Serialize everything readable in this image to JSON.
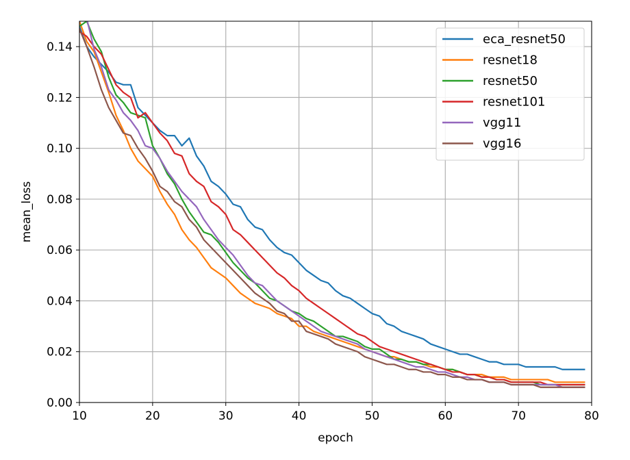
{
  "chart_data": {
    "type": "line",
    "xlabel": "epoch",
    "ylabel": "mean_loss",
    "xlim": [
      10,
      80
    ],
    "ylim": [
      0,
      0.15
    ],
    "x_ticks": [
      "10",
      "20",
      "30",
      "40",
      "50",
      "60",
      "70",
      "80"
    ],
    "x_tick_values": [
      10,
      20,
      30,
      40,
      50,
      60,
      70,
      80
    ],
    "y_ticks": [
      "0.00",
      "0.02",
      "0.04",
      "0.06",
      "0.08",
      "0.10",
      "0.12",
      "0.14"
    ],
    "y_tick_values": [
      0,
      0.02,
      0.04,
      0.06,
      0.08,
      0.1,
      0.12,
      0.14
    ],
    "grid": true,
    "legend_position": "top-right",
    "x_start": 10,
    "series": [
      {
        "name": "eca_resnet50",
        "color": "#1f77b4",
        "values": [
          0.148,
          0.14,
          0.136,
          0.133,
          0.13,
          0.126,
          0.125,
          0.125,
          0.116,
          0.113,
          0.11,
          0.107,
          0.105,
          0.105,
          0.101,
          0.104,
          0.097,
          0.093,
          0.087,
          0.085,
          0.082,
          0.078,
          0.077,
          0.072,
          0.069,
          0.068,
          0.064,
          0.061,
          0.059,
          0.058,
          0.055,
          0.052,
          0.05,
          0.048,
          0.047,
          0.044,
          0.042,
          0.041,
          0.039,
          0.037,
          0.035,
          0.034,
          0.031,
          0.03,
          0.028,
          0.027,
          0.026,
          0.025,
          0.023,
          0.022,
          0.021,
          0.02,
          0.019,
          0.019,
          0.018,
          0.017,
          0.016,
          0.016,
          0.015,
          0.015,
          0.015,
          0.014,
          0.014,
          0.014,
          0.014,
          0.014,
          0.013,
          0.013,
          0.013,
          0.013
        ]
      },
      {
        "name": "resnet18",
        "color": "#ff7f0e",
        "values": [
          0.15,
          0.142,
          0.138,
          0.13,
          0.122,
          0.113,
          0.107,
          0.1,
          0.095,
          0.092,
          0.089,
          0.083,
          0.078,
          0.074,
          0.068,
          0.064,
          0.061,
          0.057,
          0.053,
          0.051,
          0.049,
          0.046,
          0.043,
          0.041,
          0.039,
          0.038,
          0.037,
          0.035,
          0.034,
          0.033,
          0.03,
          0.03,
          0.028,
          0.027,
          0.026,
          0.025,
          0.024,
          0.023,
          0.022,
          0.021,
          0.02,
          0.019,
          0.018,
          0.018,
          0.017,
          0.016,
          0.016,
          0.015,
          0.014,
          0.014,
          0.013,
          0.013,
          0.012,
          0.011,
          0.011,
          0.011,
          0.01,
          0.01,
          0.01,
          0.009,
          0.009,
          0.009,
          0.009,
          0.009,
          0.009,
          0.008,
          0.008,
          0.008,
          0.008,
          0.008
        ]
      },
      {
        "name": "resnet50",
        "color": "#2ca02c",
        "values": [
          0.148,
          0.15,
          0.143,
          0.138,
          0.128,
          0.121,
          0.118,
          0.114,
          0.113,
          0.112,
          0.101,
          0.096,
          0.09,
          0.086,
          0.08,
          0.075,
          0.071,
          0.067,
          0.066,
          0.063,
          0.059,
          0.055,
          0.052,
          0.049,
          0.047,
          0.044,
          0.041,
          0.04,
          0.038,
          0.036,
          0.035,
          0.033,
          0.032,
          0.03,
          0.028,
          0.026,
          0.026,
          0.025,
          0.024,
          0.022,
          0.021,
          0.021,
          0.019,
          0.017,
          0.017,
          0.016,
          0.016,
          0.015,
          0.015,
          0.014,
          0.013,
          0.013,
          0.012,
          0.011,
          0.011,
          0.01,
          0.01,
          0.009,
          0.009,
          0.008,
          0.008,
          0.008,
          0.008,
          0.007,
          0.007,
          0.007,
          0.007,
          0.007,
          0.007,
          0.007
        ]
      },
      {
        "name": "resnet101",
        "color": "#d62728",
        "values": [
          0.146,
          0.144,
          0.14,
          0.137,
          0.131,
          0.125,
          0.122,
          0.12,
          0.112,
          0.114,
          0.11,
          0.106,
          0.103,
          0.098,
          0.097,
          0.09,
          0.087,
          0.085,
          0.079,
          0.077,
          0.074,
          0.068,
          0.066,
          0.063,
          0.06,
          0.057,
          0.054,
          0.051,
          0.049,
          0.046,
          0.044,
          0.041,
          0.039,
          0.037,
          0.035,
          0.033,
          0.031,
          0.029,
          0.027,
          0.026,
          0.024,
          0.022,
          0.021,
          0.02,
          0.019,
          0.018,
          0.017,
          0.016,
          0.015,
          0.014,
          0.013,
          0.012,
          0.012,
          0.011,
          0.011,
          0.01,
          0.01,
          0.009,
          0.009,
          0.008,
          0.008,
          0.008,
          0.008,
          0.008,
          0.007,
          0.007,
          0.007,
          0.007,
          0.007,
          0.007
        ]
      },
      {
        "name": "vgg11",
        "color": "#9467bd",
        "values": [
          0.15,
          0.151,
          0.139,
          0.132,
          0.123,
          0.119,
          0.114,
          0.111,
          0.107,
          0.101,
          0.1,
          0.096,
          0.091,
          0.087,
          0.083,
          0.08,
          0.077,
          0.072,
          0.068,
          0.064,
          0.061,
          0.058,
          0.054,
          0.05,
          0.047,
          0.046,
          0.043,
          0.04,
          0.038,
          0.036,
          0.034,
          0.032,
          0.03,
          0.028,
          0.027,
          0.026,
          0.025,
          0.024,
          0.023,
          0.021,
          0.02,
          0.019,
          0.018,
          0.017,
          0.016,
          0.015,
          0.014,
          0.014,
          0.013,
          0.012,
          0.012,
          0.011,
          0.01,
          0.01,
          0.009,
          0.009,
          0.008,
          0.008,
          0.008,
          0.007,
          0.007,
          0.007,
          0.007,
          0.007,
          0.007,
          0.007,
          0.006,
          0.006,
          0.006,
          0.006
        ]
      },
      {
        "name": "vgg16",
        "color": "#8c564b",
        "values": [
          0.147,
          0.14,
          0.132,
          0.123,
          0.116,
          0.111,
          0.106,
          0.105,
          0.1,
          0.096,
          0.091,
          0.085,
          0.083,
          0.079,
          0.077,
          0.072,
          0.069,
          0.064,
          0.061,
          0.058,
          0.055,
          0.052,
          0.049,
          0.046,
          0.043,
          0.041,
          0.039,
          0.036,
          0.035,
          0.032,
          0.032,
          0.028,
          0.027,
          0.026,
          0.025,
          0.023,
          0.022,
          0.021,
          0.02,
          0.018,
          0.017,
          0.016,
          0.015,
          0.015,
          0.014,
          0.013,
          0.013,
          0.012,
          0.012,
          0.011,
          0.011,
          0.01,
          0.01,
          0.009,
          0.009,
          0.009,
          0.008,
          0.008,
          0.008,
          0.007,
          0.007,
          0.007,
          0.007,
          0.006,
          0.006,
          0.006,
          0.006,
          0.006,
          0.006,
          0.006
        ]
      }
    ]
  }
}
